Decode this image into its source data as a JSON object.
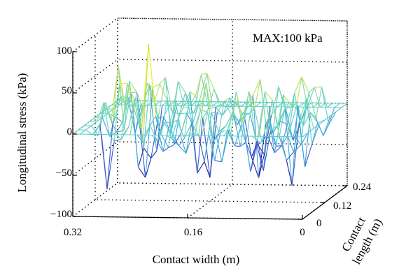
{
  "chart_data": {
    "type": "surface",
    "annotation": "MAX:100 kPa",
    "zlabel": "Longitudinal stress (kPa)",
    "xlabel": "Contact width (m)",
    "ylabel_line1": "Contact",
    "ylabel_line2": "length (m)",
    "zlim": [
      -100,
      100
    ],
    "z_ticks": [
      "100",
      "50",
      "0",
      "−50",
      "−100"
    ],
    "z_tick_values": [
      100,
      50,
      0,
      -50,
      -100
    ],
    "x_ticks": [
      "0.32",
      "0.16",
      "0"
    ],
    "x_tick_values": [
      0.32,
      0.16,
      0
    ],
    "y_ticks": [
      "0",
      "0.12",
      "0.24"
    ],
    "y_tick_values": [
      0,
      0.12,
      0.24
    ],
    "xlim": [
      0,
      0.32
    ],
    "ylim": [
      0,
      0.24
    ],
    "grid": true,
    "colormap": [
      "#1f1fa8",
      "#3b57c8",
      "#3fa3d8",
      "#5ccfc9",
      "#7fd6a8",
      "#b9e05c",
      "#f0f020",
      "#f0a020",
      "#b22222"
    ],
    "mesh_rows": 9,
    "mesh_cols": 33,
    "peaks": [
      {
        "x": 0.226,
        "y": 0.06,
        "z": 100
      },
      {
        "x": 0.276,
        "y": 0.08,
        "z": 68
      },
      {
        "x": 0.265,
        "y": 0.06,
        "z": 52
      }
    ]
  }
}
